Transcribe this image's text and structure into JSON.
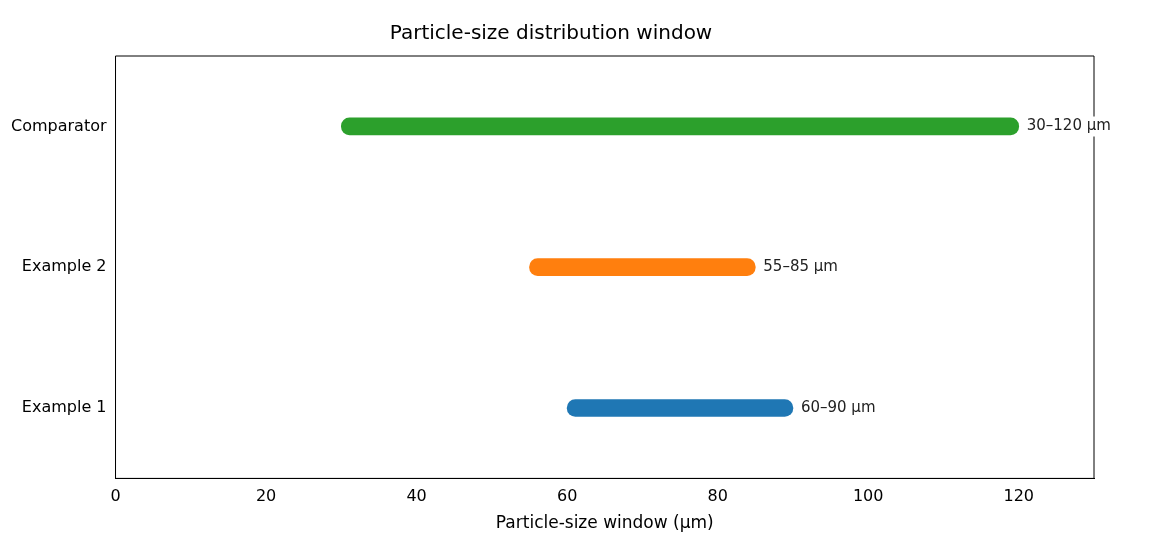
{
  "chart_data": {
    "type": "bar",
    "orientation": "horizontal",
    "title": "Particle-size distribution window",
    "xlabel": "Particle-size window (µm)",
    "categories": [
      "Comparator",
      "Example 2",
      "Example 1"
    ],
    "base": [
      30,
      55,
      60
    ],
    "values": [
      90,
      30,
      30
    ],
    "colors": [
      "#2ca02c",
      "#ff7f0e",
      "#1f77b4"
    ],
    "value_labels": [
      "30–120 µm",
      "55–85 µm",
      "60–90 µm"
    ],
    "xlim": [
      0,
      130
    ],
    "xticks": [
      0,
      20,
      40,
      60,
      80,
      100,
      120
    ],
    "grid": false,
    "legend": false
  }
}
